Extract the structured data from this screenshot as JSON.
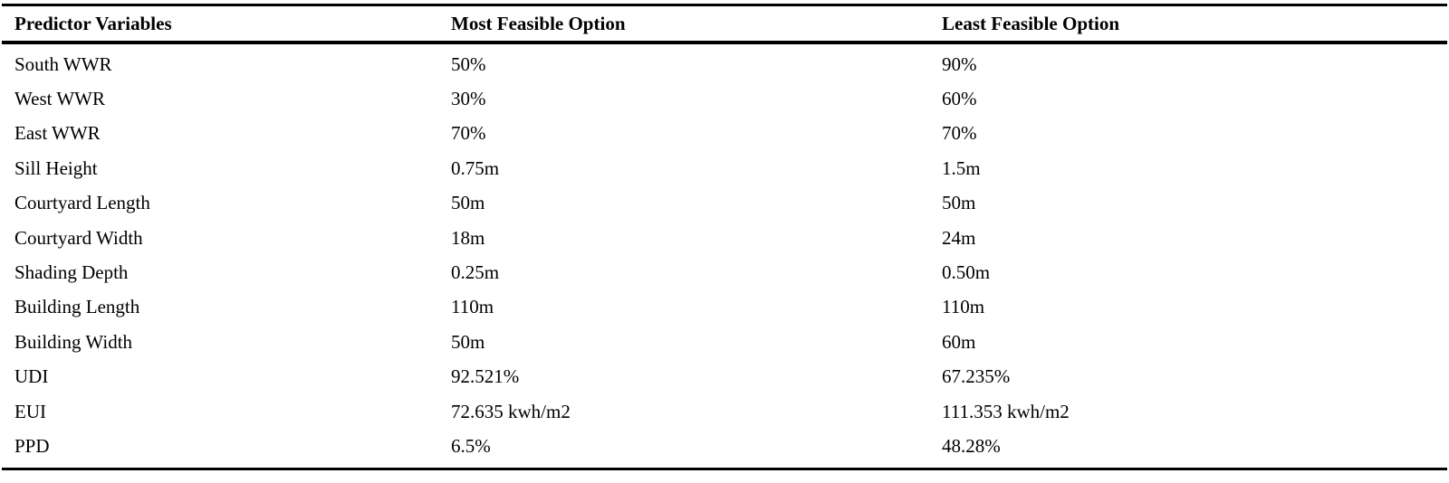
{
  "table": {
    "headers": [
      "Predictor Variables",
      "Most Feasible Option",
      "Least Feasible Option"
    ],
    "rows": [
      [
        "South WWR",
        "50%",
        "90%"
      ],
      [
        "West WWR",
        "30%",
        "60%"
      ],
      [
        "East WWR",
        "70%",
        "70%"
      ],
      [
        "Sill Height",
        "0.75m",
        "1.5m"
      ],
      [
        "Courtyard Length",
        "50m",
        "50m"
      ],
      [
        "Courtyard Width",
        "18m",
        "24m"
      ],
      [
        "Shading Depth",
        "0.25m",
        "0.50m"
      ],
      [
        "Building Length",
        "110m",
        "110m"
      ],
      [
        "Building Width",
        "50m",
        "60m"
      ],
      [
        "UDI",
        "92.521%",
        "67.235%"
      ],
      [
        "EUI",
        "72.635 kwh/m2",
        "111.353 kwh/m2"
      ],
      [
        "PPD",
        "6.5%",
        "48.28%"
      ]
    ]
  }
}
